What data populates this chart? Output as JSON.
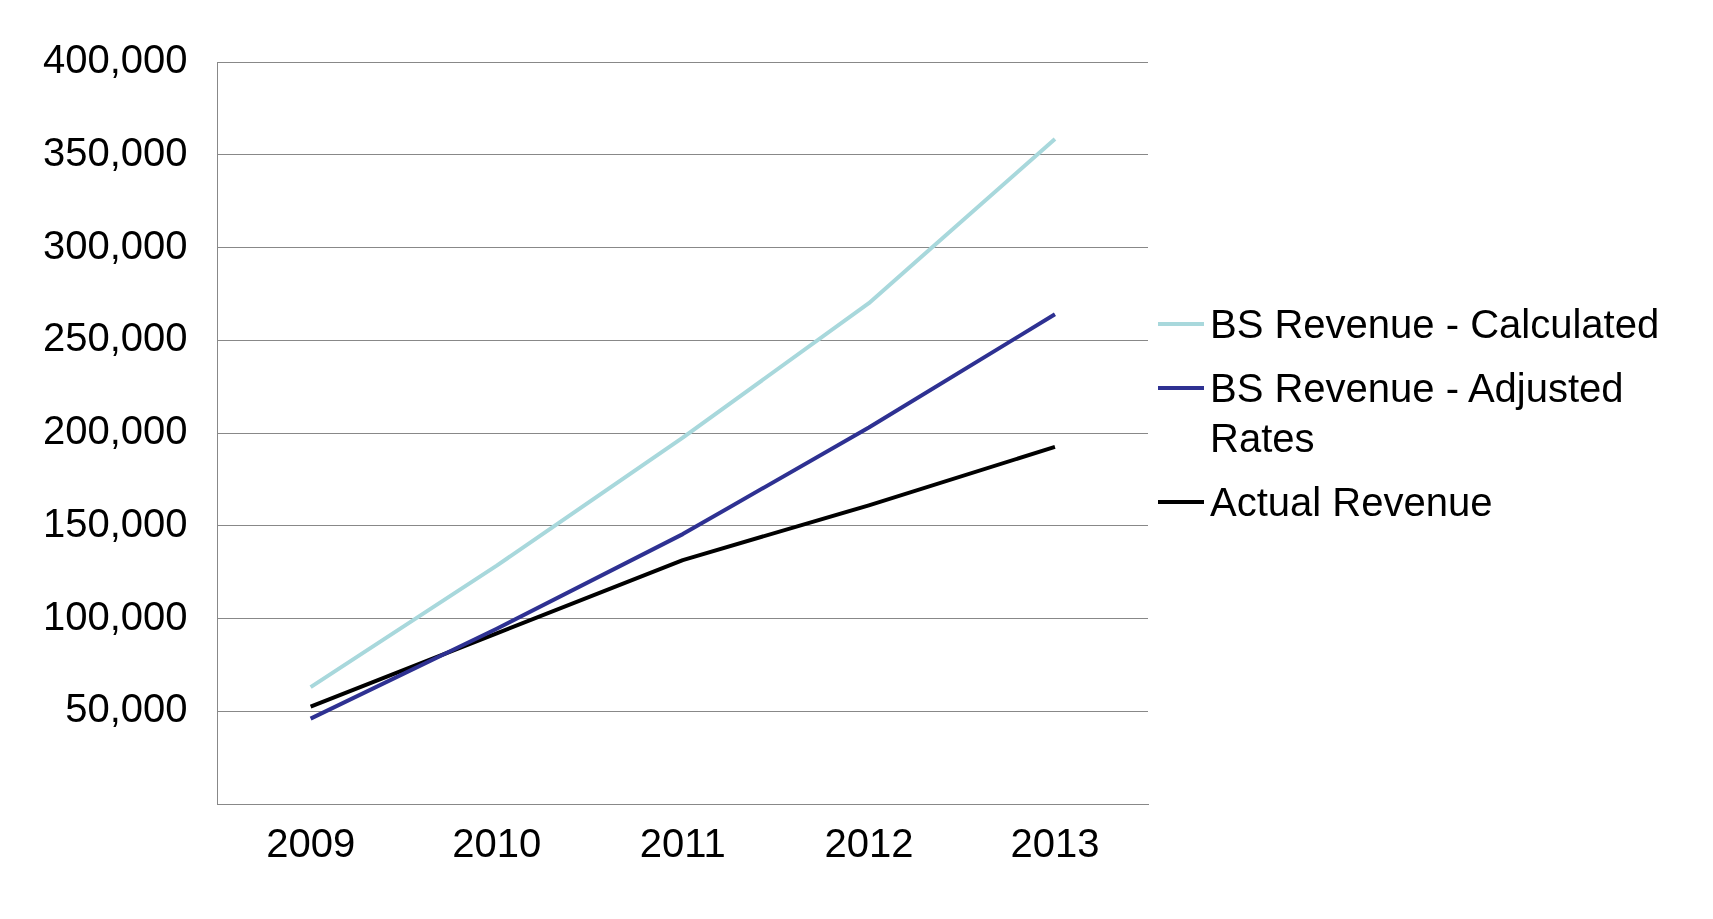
{
  "chart_data": {
    "type": "line",
    "categories": [
      "2009",
      "2010",
      "2011",
      "2012",
      "2013"
    ],
    "series": [
      {
        "name": "BS Revenue - Calculated",
        "color": "#a8d8dc",
        "values": [
          63000,
          128500,
          197500,
          270000,
          358500
        ]
      },
      {
        "name": "BS Revenue - Adjusted Rates",
        "color": "#2e3192",
        "values": [
          46000,
          94500,
          145500,
          203000,
          264000
        ]
      },
      {
        "name": "Actual Revenue",
        "color": "#000000",
        "values": [
          52500,
          92000,
          131500,
          161000,
          192500
        ]
      }
    ],
    "ylim": [
      0,
      400000
    ],
    "yticks": [
      {
        "value": 0,
        "label": null
      },
      {
        "value": 50000,
        "label": "50,000"
      },
      {
        "value": 100000,
        "label": "100,000"
      },
      {
        "value": 150000,
        "label": "150,000"
      },
      {
        "value": 200000,
        "label": "200,000"
      },
      {
        "value": 250000,
        "label": "250,000"
      },
      {
        "value": 300000,
        "label": "300,000"
      },
      {
        "value": 350000,
        "label": "350,000"
      },
      {
        "value": 400000,
        "label": "400,000"
      }
    ],
    "grid": "y",
    "legend": "right",
    "marker": "none",
    "line_style": "solid"
  }
}
